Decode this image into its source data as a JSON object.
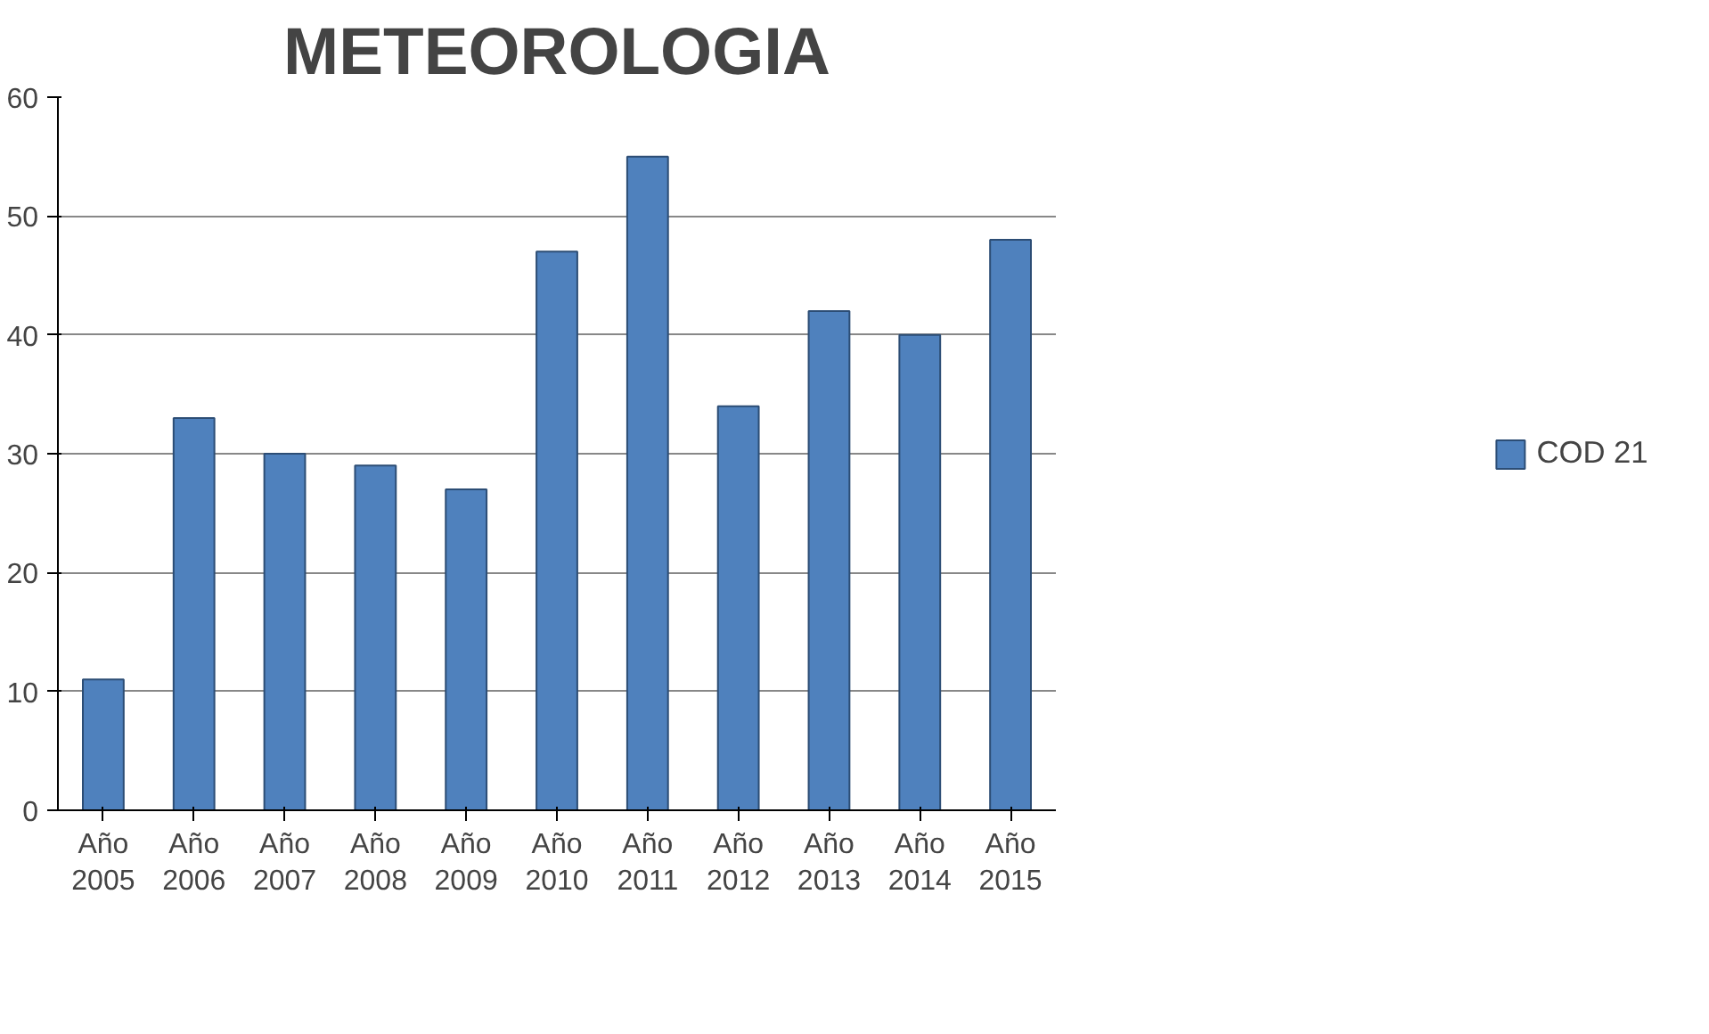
{
  "chart_data": {
    "type": "bar",
    "title": "METEOROLOGIA",
    "categories": [
      "Año 2005",
      "Año 2006",
      "Año 2007",
      "Año 2008",
      "Año 2009",
      "Año 2010",
      "Año 2011",
      "Año 2012",
      "Año 2013",
      "Año 2014",
      "Año 2015"
    ],
    "series": [
      {
        "name": "COD 21",
        "color": "#4f81bd",
        "values": [
          11,
          33,
          30,
          29,
          27,
          47,
          55,
          34,
          42,
          40,
          48
        ]
      }
    ],
    "ylim": [
      0,
      60
    ],
    "yticks": [
      0,
      10,
      20,
      30,
      40,
      50,
      60
    ],
    "grid": "y",
    "legend": "right"
  }
}
